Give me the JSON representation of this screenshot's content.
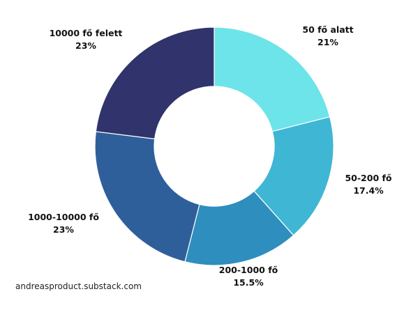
{
  "chart_data": {
    "type": "pie",
    "donut": true,
    "start_angle_deg": 0,
    "direction": "clockwise",
    "slices": [
      {
        "label": "50 fő alatt",
        "value_text": "21%",
        "value": 21,
        "color": "#6ce4e9"
      },
      {
        "label": "50-200 fő",
        "value_text": "17.4%",
        "value": 17.4,
        "color": "#40b6d5"
      },
      {
        "label": "200-1000 fő",
        "value_text": "15.5%",
        "value": 15.5,
        "color": "#2e8ebd"
      },
      {
        "label": "1000-10000 fő",
        "value_text": "23%",
        "value": 23,
        "color": "#2f5f9b"
      },
      {
        "label": "10000 fő felett",
        "value_text": "23%",
        "value": 23,
        "color": "#30336c"
      }
    ]
  },
  "footer": {
    "source": "andreasproduct.substack.com"
  }
}
